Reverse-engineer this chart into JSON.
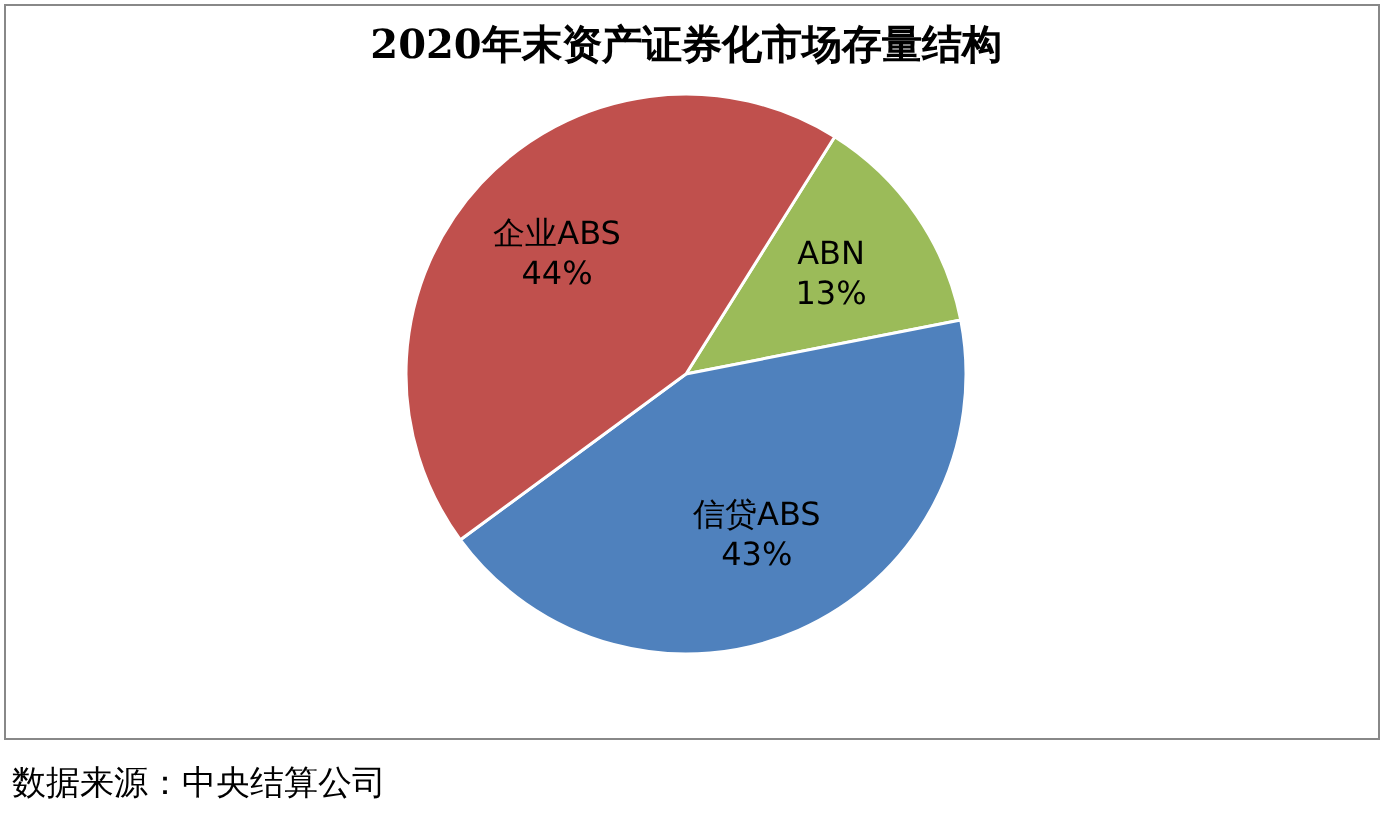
{
  "chart_data": {
    "type": "pie",
    "title": "2020年末资产证券化市场存量结构",
    "categories": [
      "ABN",
      "信贷ABS",
      "企业ABS"
    ],
    "values": [
      13,
      43,
      44
    ],
    "colors": [
      "#9bbb59",
      "#4f81bd",
      "#c0504d"
    ],
    "value_labels": [
      "13%",
      "43%",
      "44%"
    ],
    "legend": false,
    "annotations": [
      "数据来源：中央结算公司"
    ]
  }
}
